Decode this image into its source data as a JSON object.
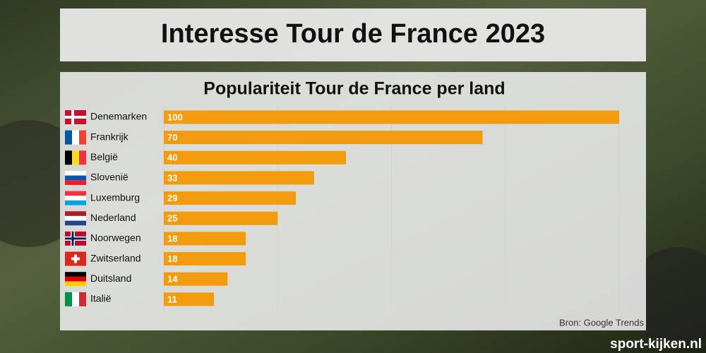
{
  "chart_data": {
    "type": "bar",
    "orientation": "horizontal",
    "header": "Interesse Tour de France 2023",
    "title": "Populariteit Tour de France per land",
    "categories": [
      "Denemarken",
      "Frankrijk",
      "België",
      "Slovenië",
      "Luxemburg",
      "Nederland",
      "Noorwegen",
      "Zwitserland",
      "Duitsland",
      "Italië"
    ],
    "values": [
      100,
      70,
      40,
      33,
      29,
      25,
      18,
      18,
      14,
      11
    ],
    "color": "#f29b0f",
    "xlim": [
      0,
      100
    ],
    "xticks": [
      0,
      25,
      50,
      75,
      100
    ],
    "grid": true,
    "source": "Bron: Google Trends",
    "watermark": "sport-kijken.nl"
  }
}
